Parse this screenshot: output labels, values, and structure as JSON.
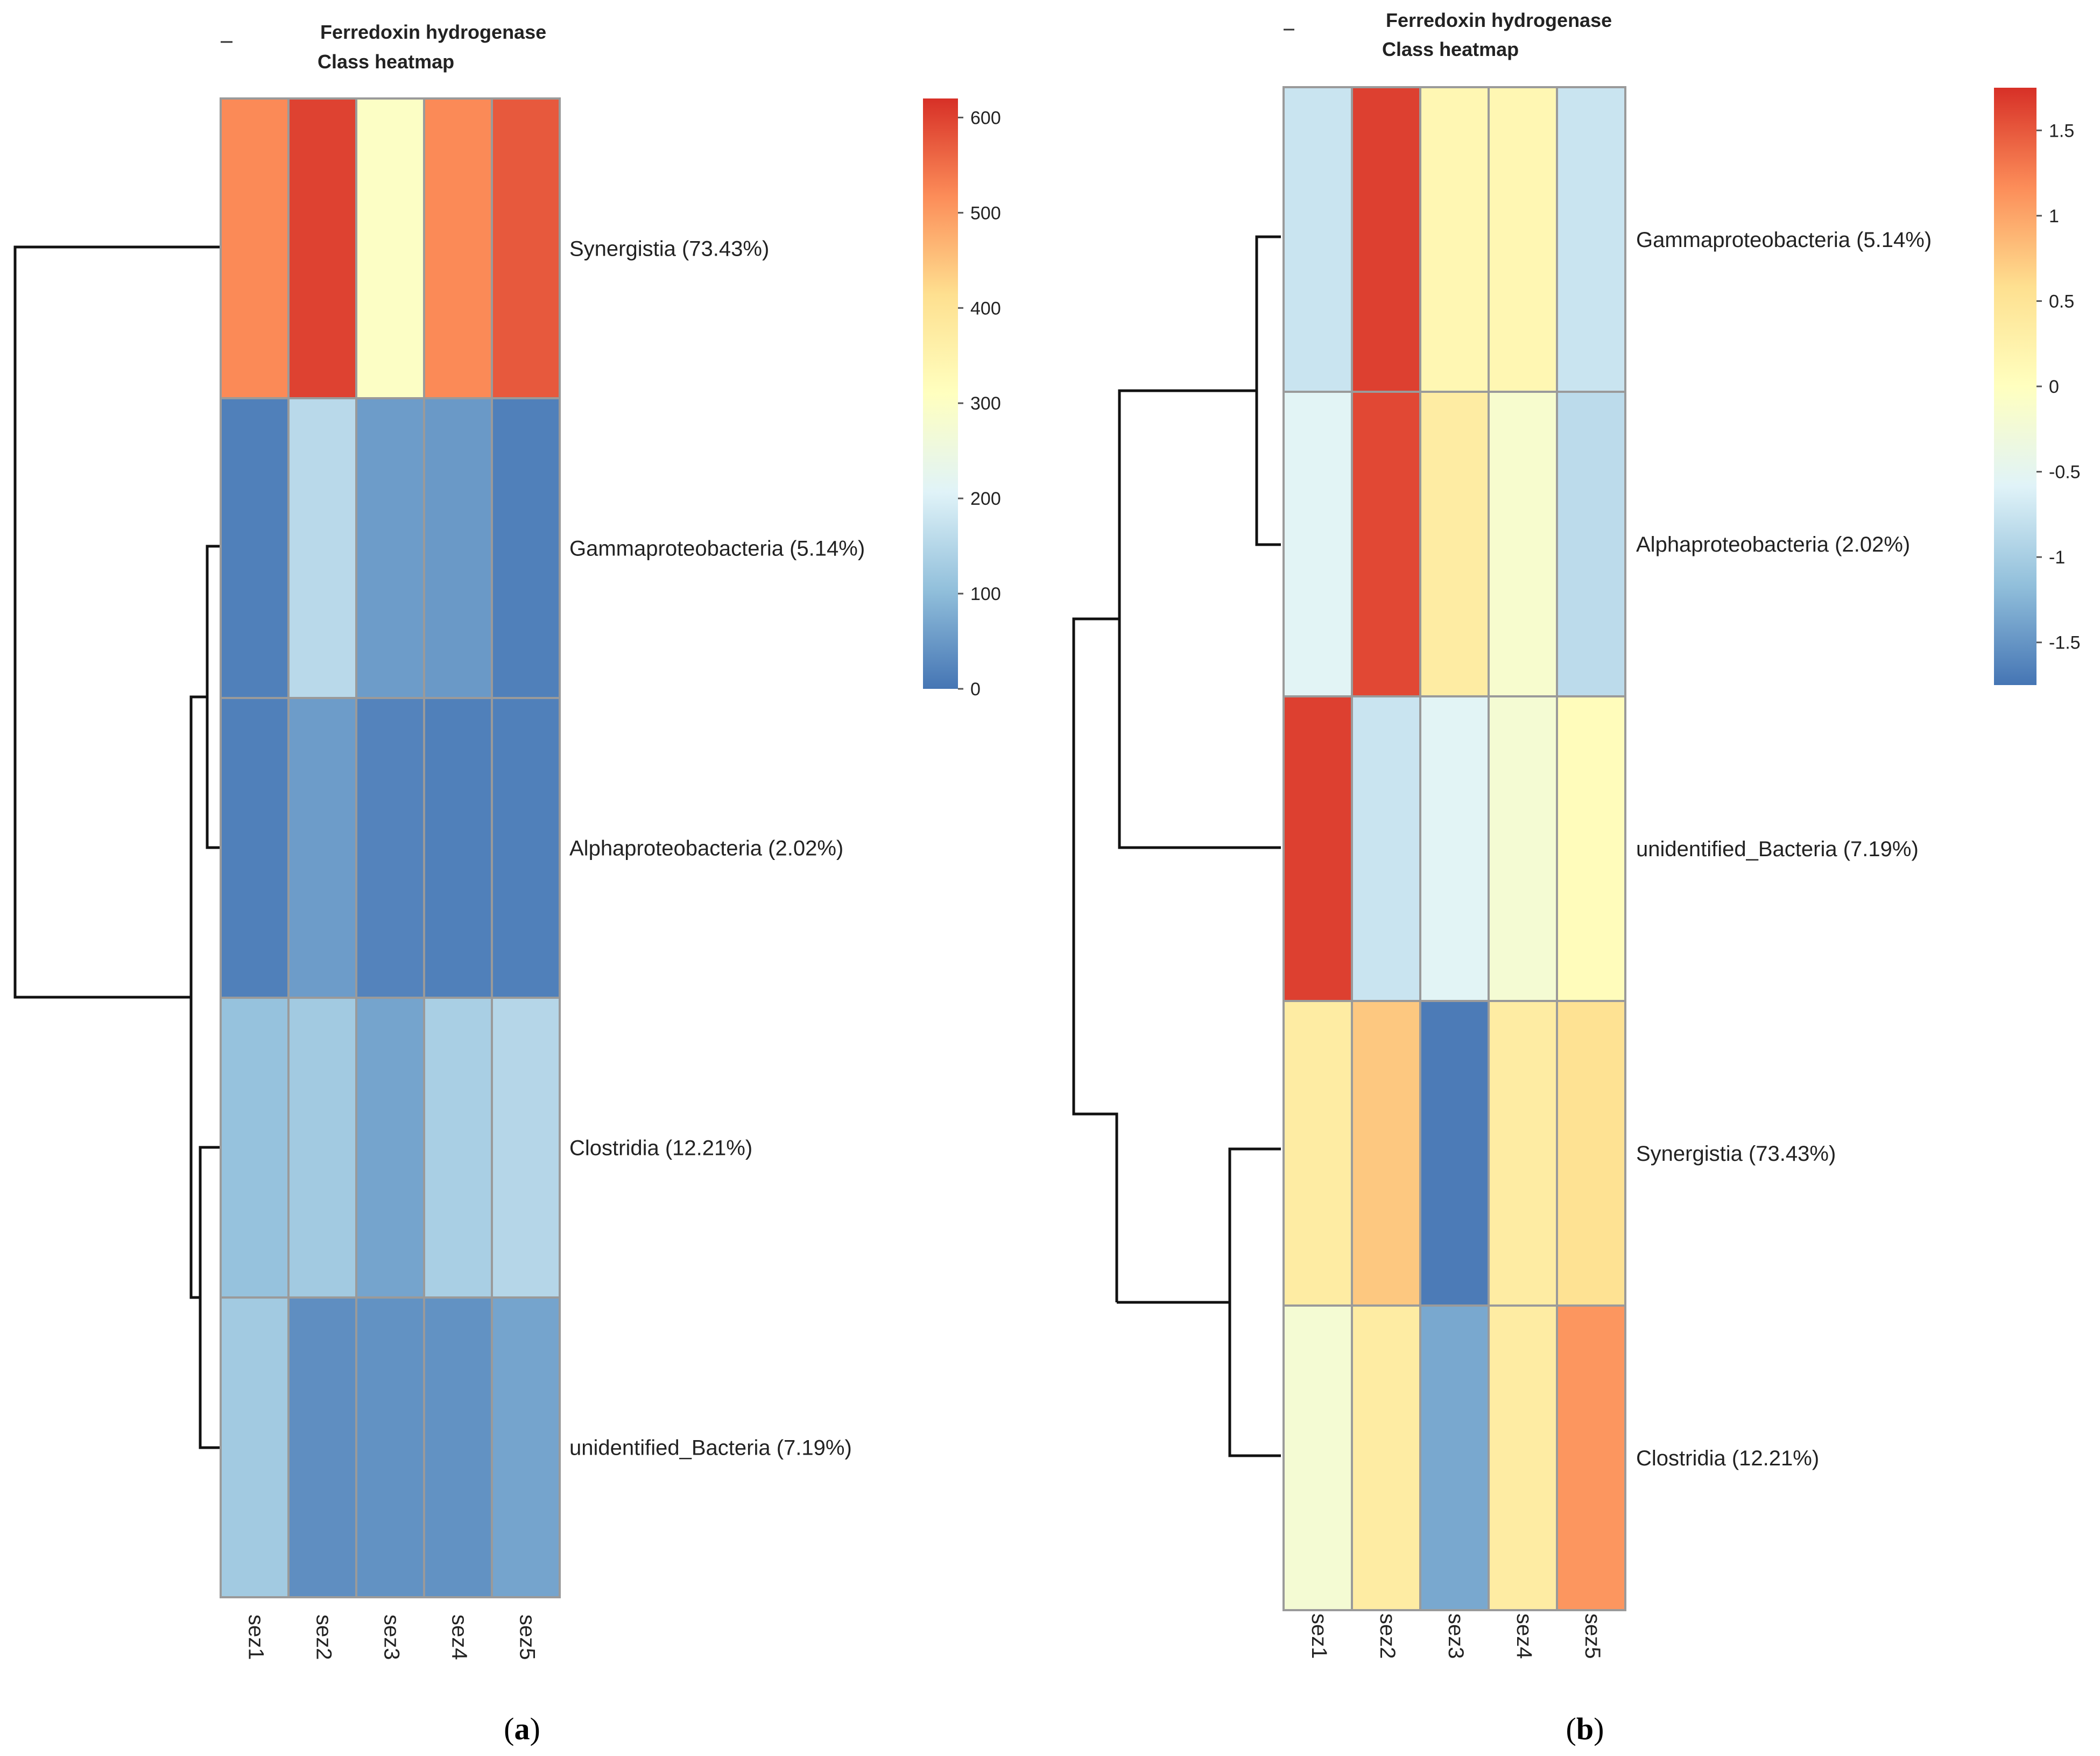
{
  "chart_data": [
    {
      "type": "heatmap",
      "panel_label": "(a)",
      "panel_letter": "a",
      "title_line1": "Ferredoxin hydrogenase",
      "title_line2": "Class heatmap",
      "columns": [
        "sez1",
        "sez2",
        "sez3",
        "sez4",
        "sez5"
      ],
      "rows": [
        "Synergistia (73.43%)",
        "Gammaproteobacteria (5.14%)",
        "Alphaproteobacteria (2.02%)",
        "Clostridia (12.21%)",
        "unidentified_Bacteria (7.19%)"
      ],
      "values": [
        [
          520,
          600,
          300,
          520,
          575
        ],
        [
          15,
          155,
          55,
          50,
          15
        ],
        [
          15,
          55,
          20,
          15,
          15
        ],
        [
          110,
          125,
          65,
          135,
          150
        ],
        [
          125,
          35,
          40,
          40,
          65
        ]
      ],
      "colorbar": {
        "min": 0,
        "max": 620,
        "ticks": [
          0,
          100,
          200,
          300,
          400,
          500,
          600
        ],
        "tick_labels": [
          "0",
          "100",
          "200",
          "300",
          "400",
          "500",
          "600"
        ]
      },
      "dendrogram": "((Synergistia),((Gammaproteobacteria,Alphaproteobacteria),(Clostridia,unidentified_Bacteria)))"
    },
    {
      "type": "heatmap",
      "panel_label": "(b)",
      "panel_letter": "b",
      "title_line1": "Ferredoxin hydrogenase",
      "title_line2": "Class heatmap",
      "columns": [
        "sez1",
        "sez2",
        "sez3",
        "sez4",
        "sez5"
      ],
      "rows": [
        "Gammaproteobacteria (5.14%)",
        "Alphaproteobacteria (2.02%)",
        "unidentified_Bacteria (7.19%)",
        "Synergistia (73.43%)",
        "Clostridia (12.21%)"
      ],
      "values": [
        [
          -0.75,
          1.65,
          0.15,
          0.15,
          -0.75
        ],
        [
          -0.55,
          1.6,
          0.35,
          -0.15,
          -0.85
        ],
        [
          1.65,
          -0.75,
          -0.55,
          -0.2,
          0.05
        ],
        [
          0.35,
          0.75,
          -1.7,
          0.35,
          0.55
        ],
        [
          -0.2,
          0.35,
          -1.35,
          0.35,
          1.1
        ]
      ],
      "colorbar": {
        "min": -1.75,
        "max": 1.75,
        "ticks": [
          -1.5,
          -1,
          -0.5,
          0,
          0.5,
          1,
          1.5
        ],
        "tick_labels": [
          "-1.5",
          "-1",
          "-0.5",
          "0",
          "0.5",
          "1",
          "1.5"
        ]
      },
      "dendrogram": "(((Gammaproteobacteria,Alphaproteobacteria),(unidentified_Bacteria)),((Synergistia,Clostridia)))"
    }
  ]
}
